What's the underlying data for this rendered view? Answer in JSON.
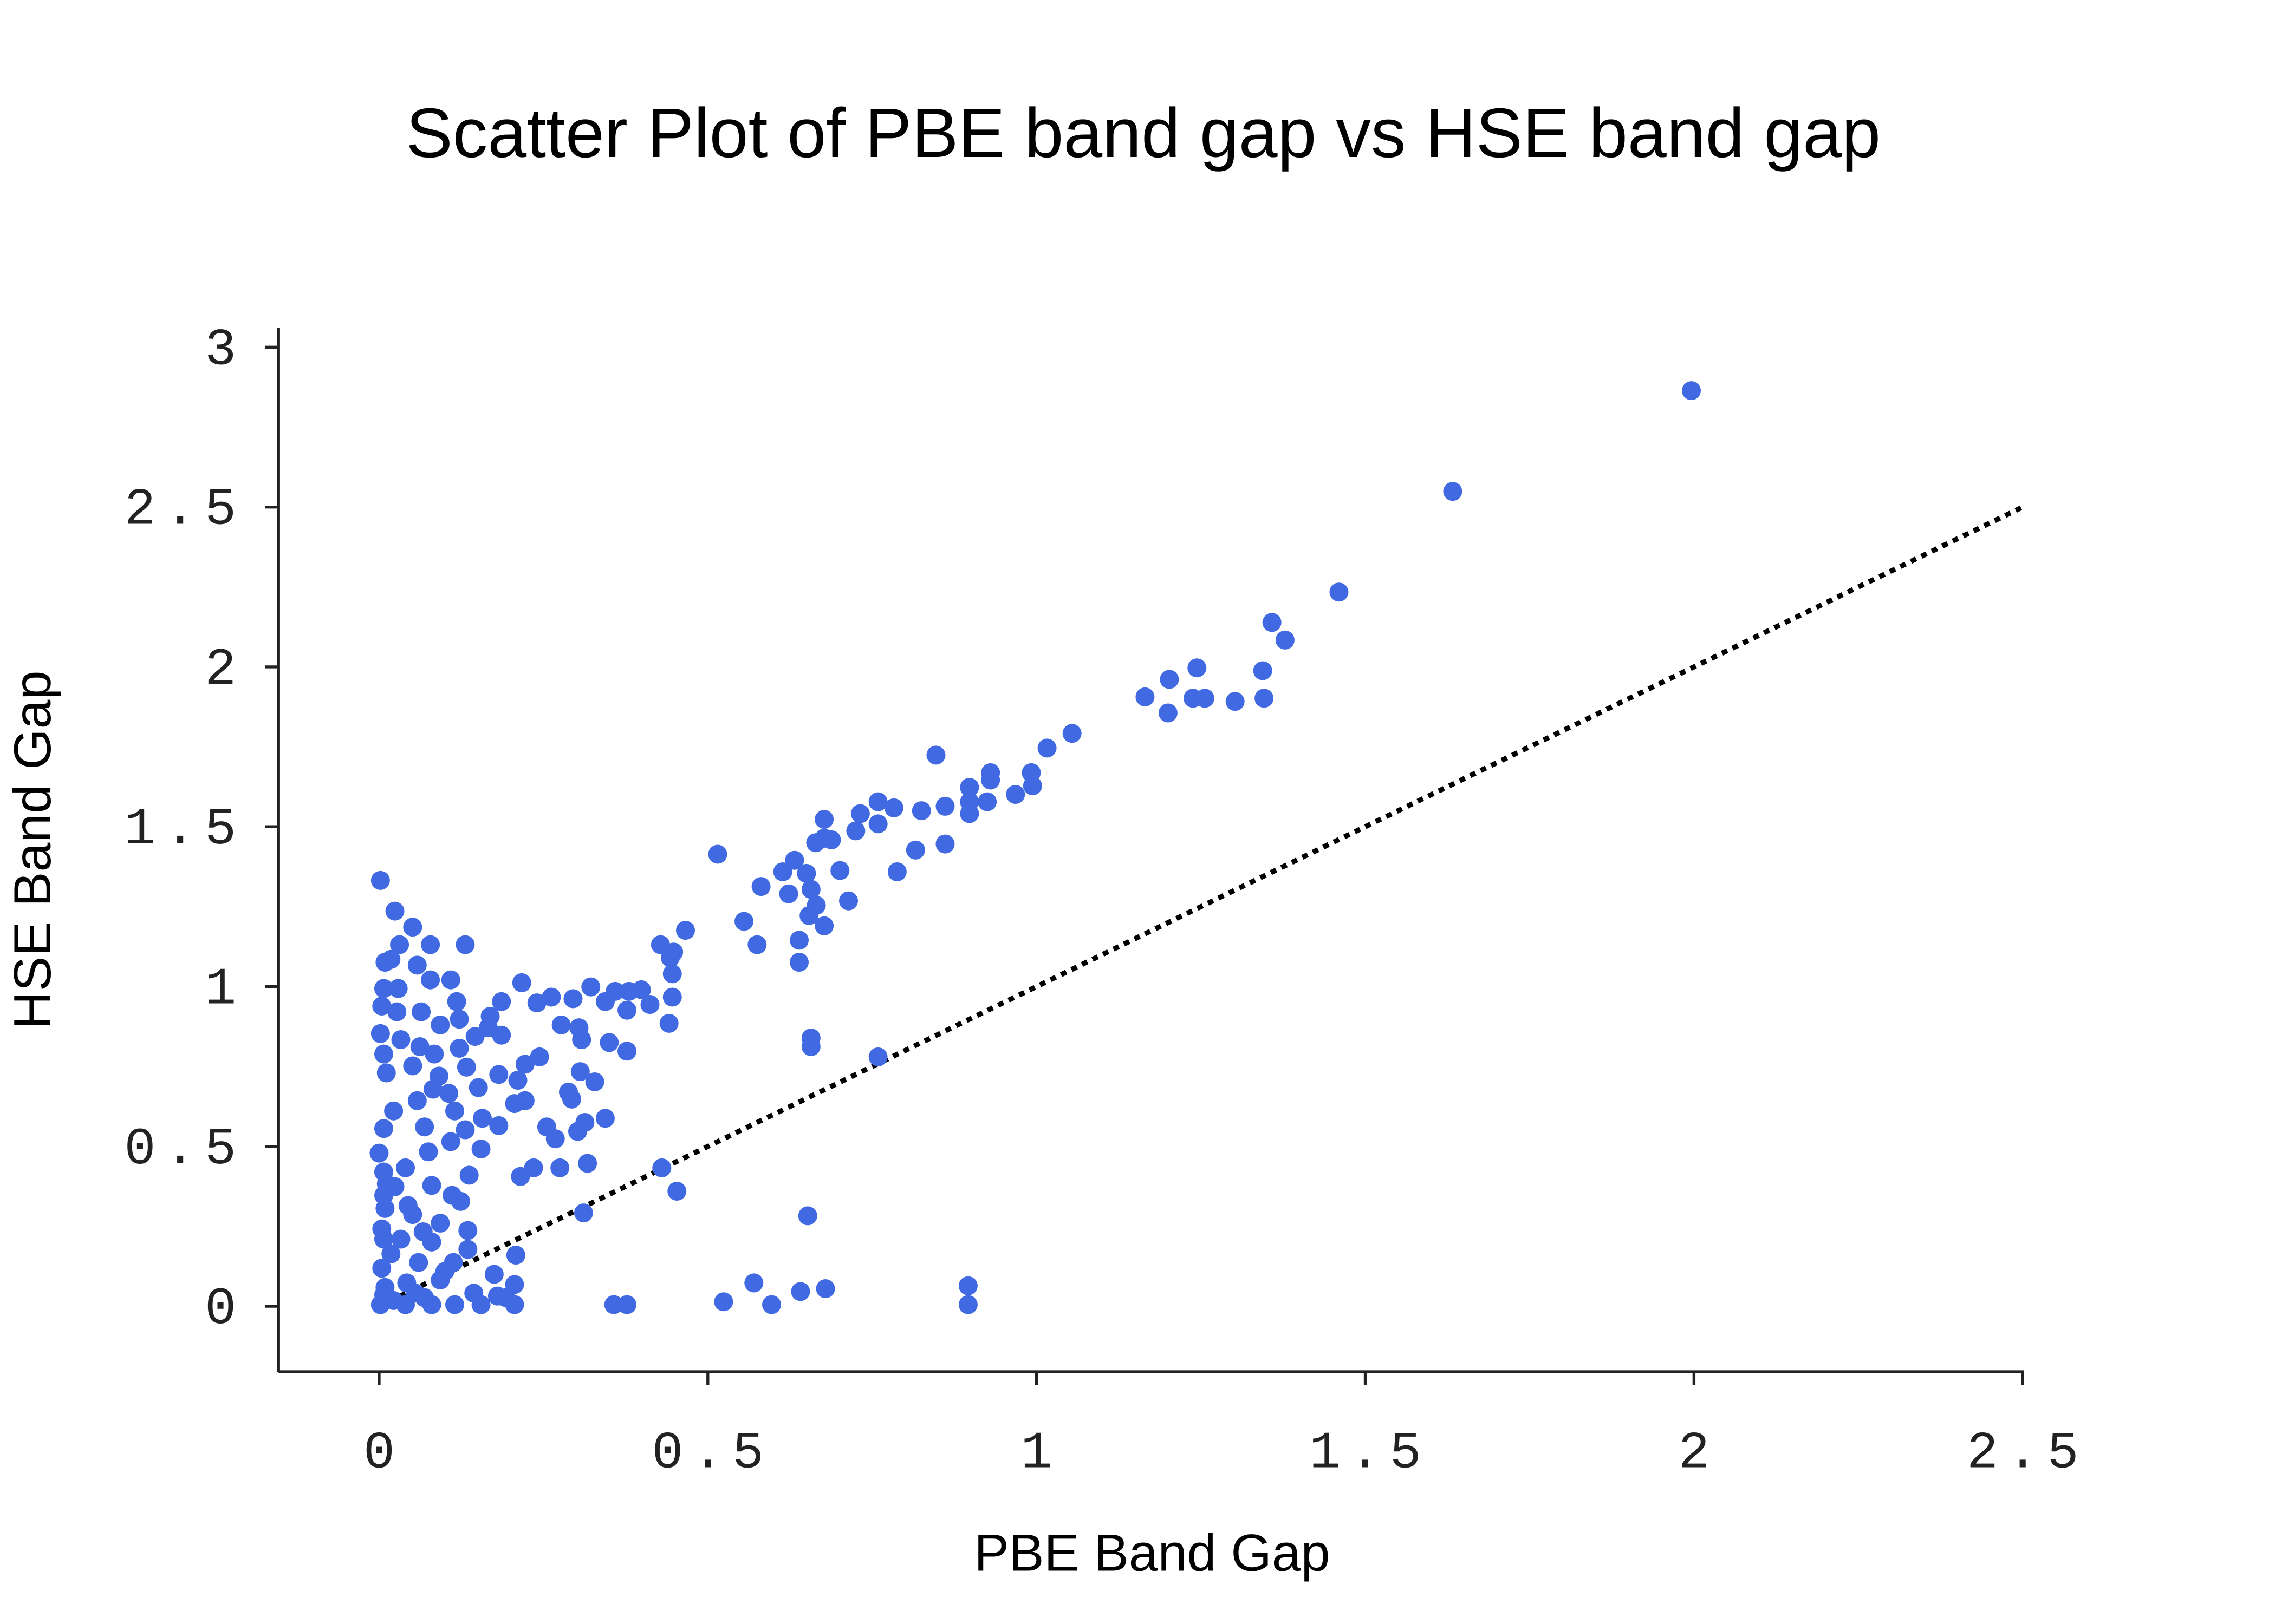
{
  "chart_data": {
    "type": "scatter",
    "title": "Scatter Plot of PBE band gap vs HSE band gap",
    "x_label": "PBE Band Gap",
    "y_label": "HSE Band Gap",
    "color": "#4169e1",
    "x": [
      1.996,
      1.633,
      1.46,
      1.358,
      1.378,
      1.344,
      1.346,
      1.302,
      1.256,
      1.238,
      1.244,
      1.202,
      1.2,
      1.165,
      1.054,
      1.016,
      0.992,
      0.994,
      0.968,
      0.93,
      0.93,
      0.925,
      0.898,
      0.898,
      0.898,
      0.847,
      0.861,
      0.861,
      0.825,
      0.816,
      0.783,
      0.788,
      0.759,
      0.759,
      0.732,
      0.725,
      0.701,
      0.714,
      0.677,
      0.688,
      0.677,
      0.664,
      0.65,
      0.657,
      0.665,
      0.654,
      0.677,
      0.639,
      0.639,
      0.623,
      0.632,
      0.614,
      0.581,
      0.575,
      0.555,
      0.515,
      0.466,
      0.448,
      0.428,
      0.443,
      0.446,
      0.446,
      0.441,
      0.412,
      0.399,
      0.38,
      0.377,
      0.359,
      0.344,
      0.322,
      0.295,
      0.262,
      0.24,
      0.217,
      0.277,
      0.304,
      0.308,
      0.35,
      0.377,
      0.657,
      0.657,
      0.759,
      0.306,
      0.328,
      0.288,
      0.293,
      0.244,
      0.222,
      0.211,
      0.222,
      0.206,
      0.344,
      0.313,
      0.255,
      0.268,
      0.302,
      0.275,
      0.317,
      0.235,
      0.215,
      0.43,
      0.453,
      0.311,
      0.652,
      0.208,
      0.135,
      0.896,
      0.896,
      0.679,
      0.641,
      0.57,
      0.597,
      0.524,
      0.377,
      0.357,
      0.002,
      0.024,
      0.051,
      0.078,
      0.131,
      0.031,
      0.018,
      0.058,
      0.009,
      0.109,
      0.078,
      0.029,
      0.007,
      0.118,
      0.186,
      0.004,
      0.064,
      0.027,
      0.122,
      0.169,
      0.093,
      0.166,
      0.002,
      0.033,
      0.186,
      0.146,
      0.122,
      0.062,
      0.084,
      0.007,
      0.011,
      0.051,
      0.091,
      0.133,
      0.182,
      0.151,
      0.082,
      0.106,
      0.058,
      0.022,
      0.115,
      0.157,
      0.069,
      0.007,
      0.131,
      0.182,
      0.109,
      0.155,
      0.075,
      0.0,
      0.137,
      0.04,
      0.007,
      0.024,
      0.08,
      0.111,
      0.124,
      0.009,
      0.051,
      0.093,
      0.004,
      0.033,
      0.08,
      0.135,
      0.018,
      0.06,
      0.113,
      0.004,
      0.175,
      0.093,
      0.042,
      0.009,
      0.206,
      0.144,
      0.18,
      0.069,
      0.022,
      0.002,
      0.04,
      0.08,
      0.115,
      0.155,
      0.206,
      0.193,
      0.007,
      0.055,
      0.007,
      0.007,
      0.011,
      0.044,
      0.067,
      0.1
    ],
    "y": [
      2.864,
      2.549,
      2.234,
      2.139,
      2.084,
      1.988,
      1.902,
      1.892,
      1.902,
      1.902,
      1.997,
      1.961,
      1.856,
      1.906,
      1.792,
      1.746,
      1.669,
      1.628,
      1.601,
      1.669,
      1.646,
      1.578,
      1.623,
      1.578,
      1.541,
      1.724,
      1.564,
      1.446,
      1.55,
      1.427,
      1.559,
      1.359,
      1.578,
      1.509,
      1.541,
      1.487,
      1.363,
      1.268,
      1.523,
      1.459,
      1.464,
      1.45,
      1.354,
      1.304,
      1.254,
      1.222,
      1.19,
      1.145,
      1.076,
      1.29,
      1.395,
      1.359,
      1.313,
      1.131,
      1.204,
      1.414,
      1.176,
      1.108,
      1.131,
      1.09,
      1.04,
      0.967,
      0.885,
      0.944,
      0.99,
      0.985,
      0.926,
      0.985,
      0.953,
      0.999,
      0.962,
      0.967,
      0.949,
      1.012,
      0.88,
      0.871,
      0.834,
      0.825,
      0.798,
      0.839,
      0.812,
      0.78,
      0.734,
      0.702,
      0.67,
      0.648,
      0.78,
      0.757,
      0.707,
      0.643,
      0.634,
      0.588,
      0.575,
      0.561,
      0.524,
      0.547,
      0.433,
      0.447,
      0.433,
      0.406,
      0.433,
      0.36,
      0.292,
      0.283,
      0.16,
      0.237,
      0.064,
      0.005,
      0.055,
      0.046,
      0.073,
      0.005,
      0.014,
      0.005,
      0.005,
      1.332,
      1.236,
      1.186,
      1.131,
      1.131,
      1.131,
      1.085,
      1.067,
      1.076,
      1.021,
      1.021,
      0.994,
      0.994,
      0.953,
      0.953,
      0.939,
      0.921,
      0.921,
      0.898,
      0.907,
      0.88,
      0.871,
      0.853,
      0.834,
      0.848,
      0.844,
      0.807,
      0.812,
      0.789,
      0.789,
      0.73,
      0.752,
      0.72,
      0.748,
      0.725,
      0.684,
      0.679,
      0.666,
      0.643,
      0.611,
      0.611,
      0.588,
      0.561,
      0.556,
      0.552,
      0.565,
      0.515,
      0.492,
      0.483,
      0.479,
      0.41,
      0.433,
      0.42,
      0.374,
      0.378,
      0.347,
      0.328,
      0.306,
      0.287,
      0.26,
      0.242,
      0.21,
      0.201,
      0.178,
      0.164,
      0.137,
      0.137,
      0.119,
      0.1,
      0.082,
      0.073,
      0.059,
      0.068,
      0.041,
      0.032,
      0.027,
      0.018,
      0.005,
      0.005,
      0.005,
      0.005,
      0.005,
      0.005,
      0.027,
      0.036,
      0.041,
      0.21,
      0.347,
      0.383,
      0.315,
      0.233,
      0.109
    ],
    "reference_line": {
      "x": [
        0,
        2.5
      ],
      "y": [
        0,
        2.5
      ],
      "color": "#000000",
      "style": "dotted"
    },
    "xlim": [
      -0.153,
      2.5
    ],
    "ylim": [
      -0.205,
      3.06
    ],
    "xticks": [
      0,
      0.5,
      1,
      1.5,
      2,
      2.5
    ],
    "yticks": [
      0,
      0.5,
      1,
      1.5,
      2,
      2.5,
      3
    ],
    "grid": false
  }
}
